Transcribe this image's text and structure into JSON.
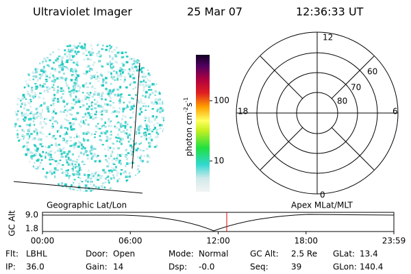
{
  "header": {
    "title": "Ultraviolet Imager",
    "date": "25 Mar 07",
    "time": "12:36:33 UT"
  },
  "colorbar": {
    "label": "photon cm",
    "exp1": "-2",
    "unit2": "s",
    "exp2": "-1",
    "ticks": [
      "100",
      "10"
    ]
  },
  "polar": {
    "mlt_labels": [
      "12",
      "18",
      "6",
      "0"
    ],
    "lat_labels": [
      "60",
      "70",
      "80"
    ]
  },
  "timeline": {
    "axis_label": "GC Alt",
    "y_labels": [
      "9.0",
      "1.8"
    ],
    "left_label": "Geographic Lat/Lon",
    "right_label": "Apex MLat/MLT",
    "x_labels": [
      "00:00",
      "06:00",
      "12:00",
      "18:00",
      "23:59"
    ]
  },
  "info": [
    [
      [
        "Flt:",
        "LBHL"
      ],
      [
        "Door:",
        "Open"
      ],
      [
        "Mode:",
        "Normal"
      ],
      [
        "GC Alt:",
        "2.5 Re"
      ],
      [
        "GLat:",
        "13.4"
      ]
    ],
    [
      [
        "IP:",
        "36.0"
      ],
      [
        "Gain:",
        "14"
      ],
      [
        "Dsp:",
        "-0.0"
      ],
      [
        "Seq:",
        "39"
      ],
      [
        "GLon:",
        "140.4"
      ]
    ]
  ]
}
